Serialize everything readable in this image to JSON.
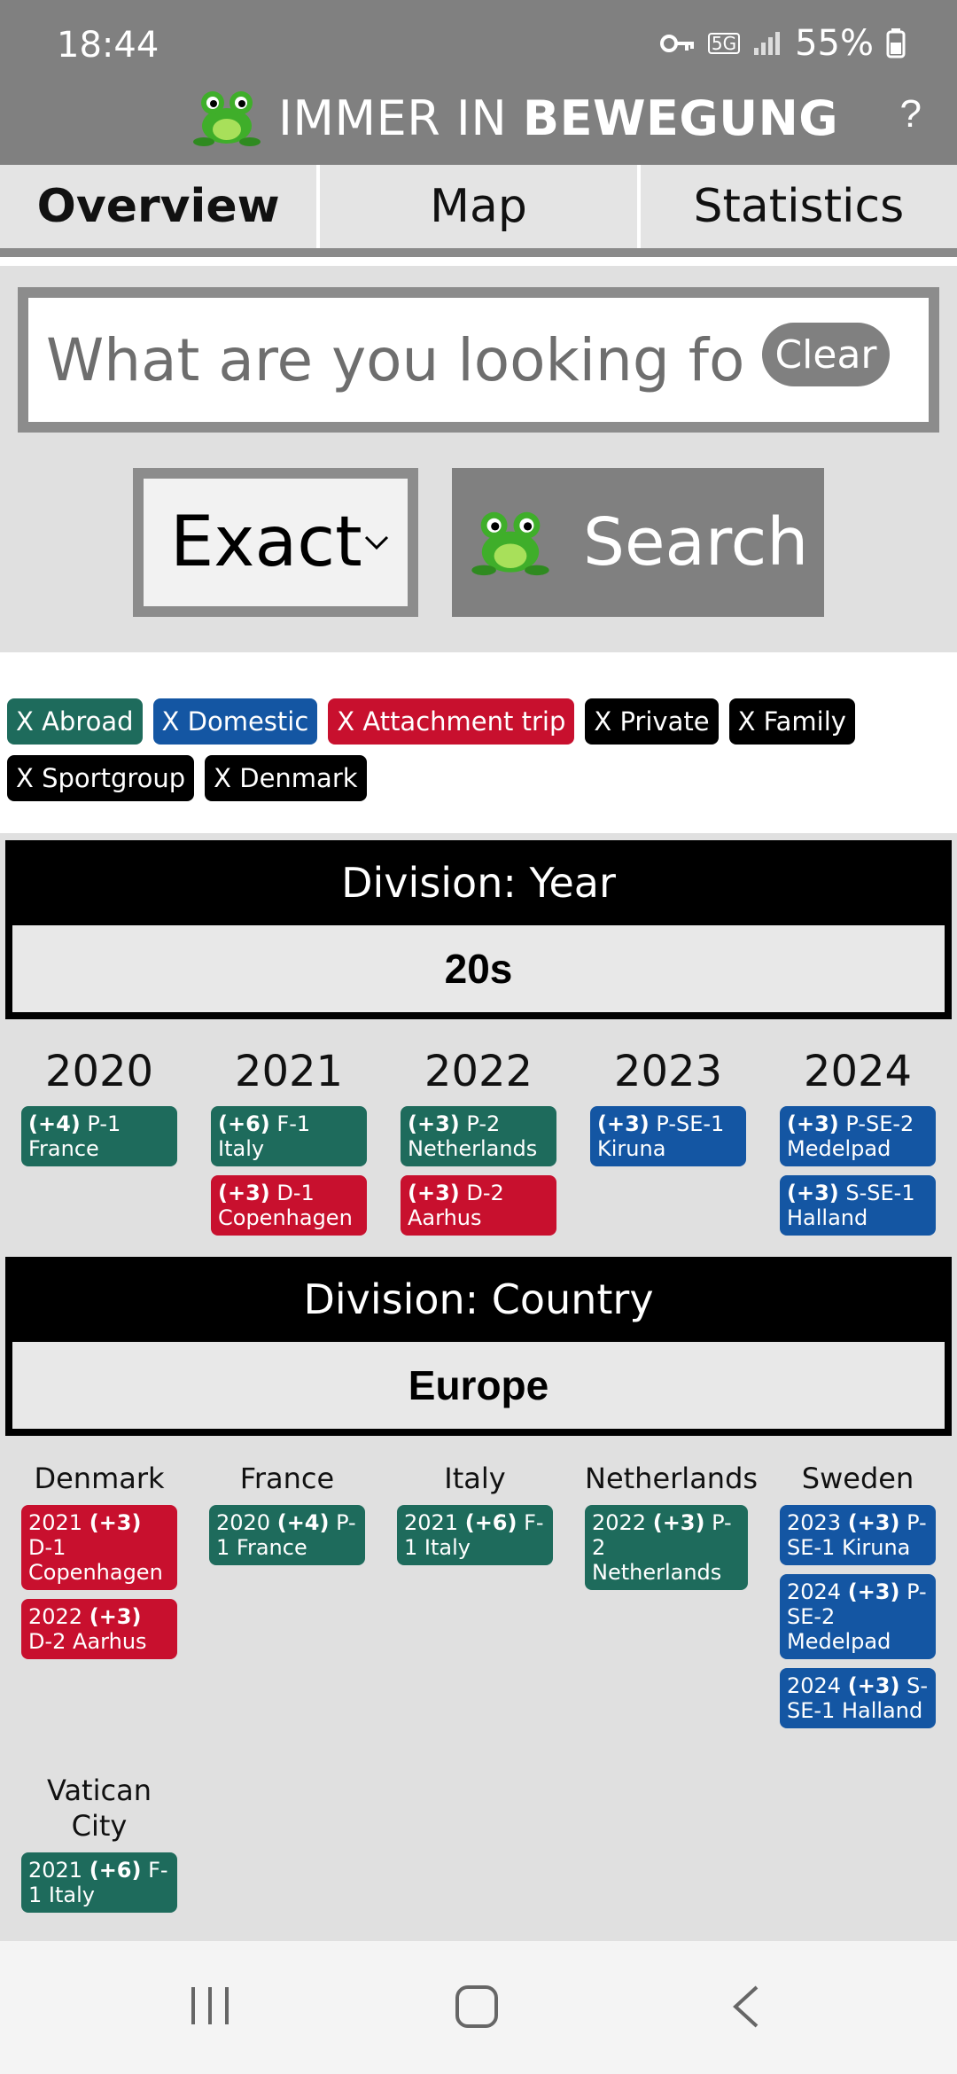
{
  "status": {
    "time": "18:44",
    "network": "5G",
    "battery": "55%",
    "icons": [
      "key-icon",
      "signal-icon",
      "battery-icon"
    ]
  },
  "header": {
    "title_light": "IMMER IN",
    "title_bold": "BEWEGUNG",
    "help": "?",
    "logo_icon": "frog-icon"
  },
  "tabs": [
    "Overview",
    "Map",
    "Statistics"
  ],
  "search": {
    "placeholder": "What are you looking for?",
    "clear_label": "Clear",
    "mode": "Exact",
    "button_label": "Search"
  },
  "filters": [
    {
      "label": "X Abroad",
      "color": "#1e6b5c"
    },
    {
      "label": "X Domestic",
      "color": "#1456a3"
    },
    {
      "label": "X Attachment trip",
      "color": "#c8102e"
    },
    {
      "label": "X Private",
      "color": "#000000"
    },
    {
      "label": "X Family",
      "color": "#000000"
    },
    {
      "label": "X Sportgroup",
      "color": "#000000"
    },
    {
      "label": "X Denmark",
      "color": "#000000"
    }
  ],
  "division_year": {
    "title": "Division: Year",
    "group": "20s",
    "columns": [
      {
        "heading": "2020",
        "cards": [
          {
            "count": "(+4)",
            "text": "P-1 France",
            "kind": "abroad"
          }
        ]
      },
      {
        "heading": "2021",
        "cards": [
          {
            "count": "(+6)",
            "text": "F-1 Italy",
            "kind": "abroad"
          },
          {
            "count": "(+3)",
            "text": "D-1 Copenhagen",
            "kind": "attach"
          }
        ]
      },
      {
        "heading": "2022",
        "cards": [
          {
            "count": "(+3)",
            "text": "P-2 Netherlands",
            "kind": "abroad"
          },
          {
            "count": "(+3)",
            "text": "D-2 Aarhus",
            "kind": "attach"
          }
        ]
      },
      {
        "heading": "2023",
        "cards": [
          {
            "count": "(+3)",
            "text": "P-SE-1 Kiruna",
            "kind": "domestic"
          }
        ]
      },
      {
        "heading": "2024",
        "cards": [
          {
            "count": "(+3)",
            "text": "P-SE-2 Medelpad",
            "kind": "domestic"
          },
          {
            "count": "(+3)",
            "text": "S-SE-1 Halland",
            "kind": "domestic"
          }
        ]
      }
    ]
  },
  "division_country": {
    "title": "Division: Country",
    "group": "Europe",
    "columns": [
      {
        "heading": "Denmark",
        "cards": [
          {
            "year": "2021",
            "count": "(+3)",
            "text": "D-1 Copenhagen",
            "kind": "attach"
          },
          {
            "year": "2022",
            "count": "(+3)",
            "text": "D-2 Aarhus",
            "kind": "attach"
          }
        ]
      },
      {
        "heading": "France",
        "cards": [
          {
            "year": "2020",
            "count": "(+4)",
            "text": "P-1 France",
            "kind": "abroad"
          }
        ]
      },
      {
        "heading": "Italy",
        "cards": [
          {
            "year": "2021",
            "count": "(+6)",
            "text": "F-1 Italy",
            "kind": "abroad"
          }
        ]
      },
      {
        "heading": "Netherlands",
        "cards": [
          {
            "year": "2022",
            "count": "(+3)",
            "text": "P-2 Netherlands",
            "kind": "abroad"
          }
        ]
      },
      {
        "heading": "Sweden",
        "cards": [
          {
            "year": "2023",
            "count": "(+3)",
            "text": "P-SE-1 Kiruna",
            "kind": "domestic"
          },
          {
            "year": "2024",
            "count": "(+3)",
            "text": "P-SE-2 Medelpad",
            "kind": "domestic"
          },
          {
            "year": "2024",
            "count": "(+3)",
            "text": "S-SE-1 Halland",
            "kind": "domestic"
          }
        ]
      },
      {
        "heading": "Vatican City",
        "cards": [
          {
            "year": "2021",
            "count": "(+6)",
            "text": "F-1 Italy",
            "kind": "abroad"
          }
        ]
      }
    ]
  },
  "navbar": {
    "icons": [
      "recent-apps-icon",
      "home-icon",
      "back-icon"
    ]
  }
}
